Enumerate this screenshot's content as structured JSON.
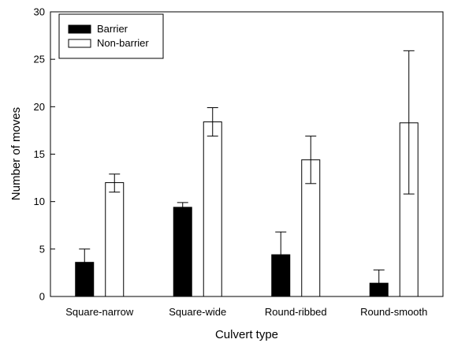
{
  "chart_data": {
    "type": "bar",
    "xlabel": "Culvert type",
    "ylabel": "Number of moves",
    "ylim": [
      0,
      30
    ],
    "yticks": [
      0,
      5,
      10,
      15,
      20,
      25,
      30
    ],
    "categories": [
      "Square-narrow",
      "Square-wide",
      "Round-ribbed",
      "Round-smooth"
    ],
    "series": [
      {
        "name": "Barrier",
        "color": "#000000",
        "values": [
          3.6,
          9.4,
          4.4,
          1.4
        ],
        "error_upper": [
          1.4,
          0.5,
          2.4,
          1.4
        ]
      },
      {
        "name": "Non-barrier",
        "color": "#ffffff",
        "values": [
          12.0,
          18.4,
          14.4,
          18.3
        ],
        "error_upper": [
          0.9,
          1.5,
          2.5,
          7.6
        ],
        "error_lower": [
          1.0,
          1.5,
          2.5,
          7.5
        ]
      }
    ],
    "legend_position": "top-left",
    "grid": false
  }
}
